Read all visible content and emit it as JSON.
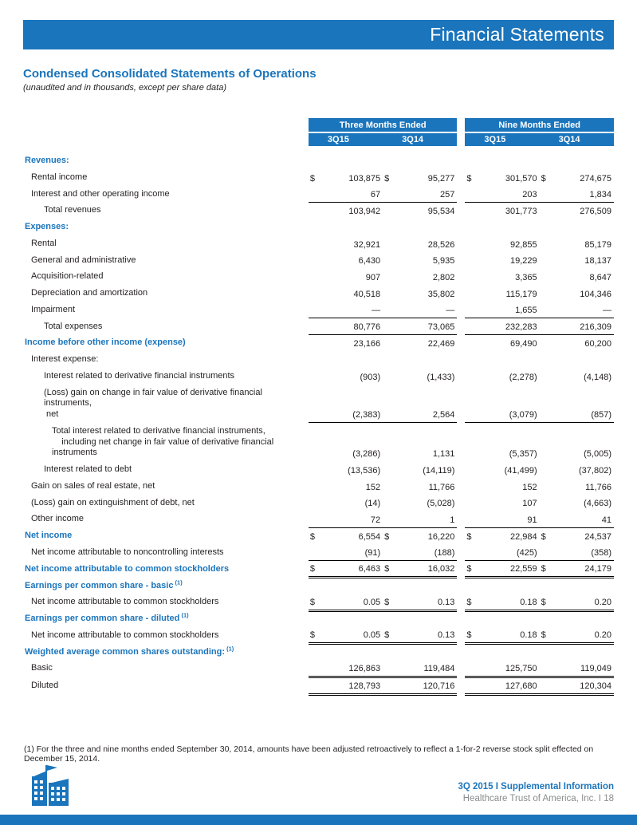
{
  "colors": {
    "accent": "#1B75BC"
  },
  "banner": {
    "title": "Financial Statements"
  },
  "page": {
    "title": "Condensed Consolidated Statements of Operations",
    "subtitle": "(unaudited and in thousands, except per share data)"
  },
  "table": {
    "col_groups": [
      "Three Months Ended",
      "Nine Months Ended"
    ],
    "col_headers": [
      "3Q15",
      "3Q14",
      "3Q15",
      "3Q14"
    ],
    "rows": [
      {
        "label": "Revenues:",
        "section": true
      },
      {
        "label": "Rental income",
        "indent": 1,
        "dollar": true,
        "values": [
          "103,875",
          "95,277",
          "301,570",
          "274,675"
        ]
      },
      {
        "label": "Interest and other operating income",
        "indent": 1,
        "values": [
          "67",
          "257",
          "203",
          "1,834"
        ],
        "border": "single"
      },
      {
        "label": "Total revenues",
        "indent": 2,
        "values": [
          "103,942",
          "95,534",
          "301,773",
          "276,509"
        ]
      },
      {
        "label": "Expenses:",
        "section": true
      },
      {
        "label": "Rental",
        "indent": 1,
        "values": [
          "32,921",
          "28,526",
          "92,855",
          "85,179"
        ]
      },
      {
        "label": "General and administrative",
        "indent": 1,
        "values": [
          "6,430",
          "5,935",
          "19,229",
          "18,137"
        ]
      },
      {
        "label": "Acquisition-related",
        "indent": 1,
        "values": [
          "907",
          "2,802",
          "3,365",
          "8,647"
        ]
      },
      {
        "label": "Depreciation and amortization",
        "indent": 1,
        "values": [
          "40,518",
          "35,802",
          "115,179",
          "104,346"
        ]
      },
      {
        "label": "Impairment",
        "indent": 1,
        "values": [
          "—",
          "—",
          "1,655",
          "—"
        ],
        "border": "single"
      },
      {
        "label": "Total expenses",
        "indent": 2,
        "values": [
          "80,776",
          "73,065",
          "232,283",
          "216,309"
        ],
        "border": "single"
      },
      {
        "label": "Income before other income (expense)",
        "section": true,
        "values": [
          "23,166",
          "22,469",
          "69,490",
          "60,200"
        ]
      },
      {
        "label": "Interest expense:",
        "indent": 1
      },
      {
        "label": "Interest related to derivative financial instruments",
        "indent": 2,
        "values": [
          "(903)",
          "(1,433)",
          "(2,278)",
          "(4,148)"
        ]
      },
      {
        "label": "(Loss) gain on change in fair value of derivative financial instruments,\n net",
        "indent": 2,
        "values": [
          "(2,383)",
          "2,564",
          "(3,079)",
          "(857)"
        ],
        "border": "single"
      },
      {
        "label": "Total interest related to derivative financial instruments,\n    including net change in fair value of derivative financial instruments",
        "indent": 3,
        "values": [
          "(3,286)",
          "1,131",
          "(5,357)",
          "(5,005)"
        ]
      },
      {
        "label": "Interest related to debt",
        "indent": 2,
        "values": [
          "(13,536)",
          "(14,119)",
          "(41,499)",
          "(37,802)"
        ]
      },
      {
        "label": "Gain on sales of real estate, net",
        "indent": 1,
        "values": [
          "152",
          "11,766",
          "152",
          "11,766"
        ]
      },
      {
        "label": "(Loss) gain on extinguishment of debt, net",
        "indent": 1,
        "values": [
          "(14)",
          "(5,028)",
          "107",
          "(4,663)"
        ]
      },
      {
        "label": "Other income",
        "indent": 1,
        "values": [
          "72",
          "1",
          "91",
          "41"
        ],
        "border": "single"
      },
      {
        "label": "Net income",
        "section": true,
        "dollar": true,
        "values": [
          "6,554",
          "16,220",
          "22,984",
          "24,537"
        ]
      },
      {
        "label": "Net income attributable to noncontrolling interests",
        "indent": 1,
        "values": [
          "(91)",
          "(188)",
          "(425)",
          "(358)"
        ],
        "border": "single"
      },
      {
        "label": "Net income attributable to common stockholders",
        "section": true,
        "dollar": true,
        "values": [
          "6,463",
          "16,032",
          "22,559",
          "24,179"
        ],
        "border": "double"
      },
      {
        "label": "Earnings per common share - basic",
        "section": true,
        "sup": "(1)"
      },
      {
        "label": "Net income attributable to common stockholders",
        "indent": 1,
        "dollar": true,
        "values": [
          "0.05",
          "0.13",
          "0.18",
          "0.20"
        ],
        "border": "double"
      },
      {
        "label": "Earnings per common share - diluted",
        "section": true,
        "sup": "(1)"
      },
      {
        "label": "Net income attributable to common stockholders",
        "indent": 1,
        "dollar": true,
        "values": [
          "0.05",
          "0.13",
          "0.18",
          "0.20"
        ],
        "border": "double"
      },
      {
        "label": "Weighted average common shares outstanding:",
        "section": true,
        "sup": "(1)"
      },
      {
        "label": "Basic",
        "indent": 1,
        "values": [
          "126,863",
          "119,484",
          "125,750",
          "119,049"
        ],
        "border": "double"
      },
      {
        "label": "Diluted",
        "indent": 1,
        "values": [
          "128,793",
          "120,716",
          "127,680",
          "120,304"
        ],
        "border": "double"
      }
    ]
  },
  "footnote": "(1) For the three and nine months ended September 30, 2014, amounts have been adjusted retroactively to reflect a 1-for-2 reverse stock split effected on December 15, 2014.",
  "footer": {
    "line1": "3Q 2015 I Supplemental Information",
    "line2": "Healthcare Trust of America, Inc. I 18"
  }
}
